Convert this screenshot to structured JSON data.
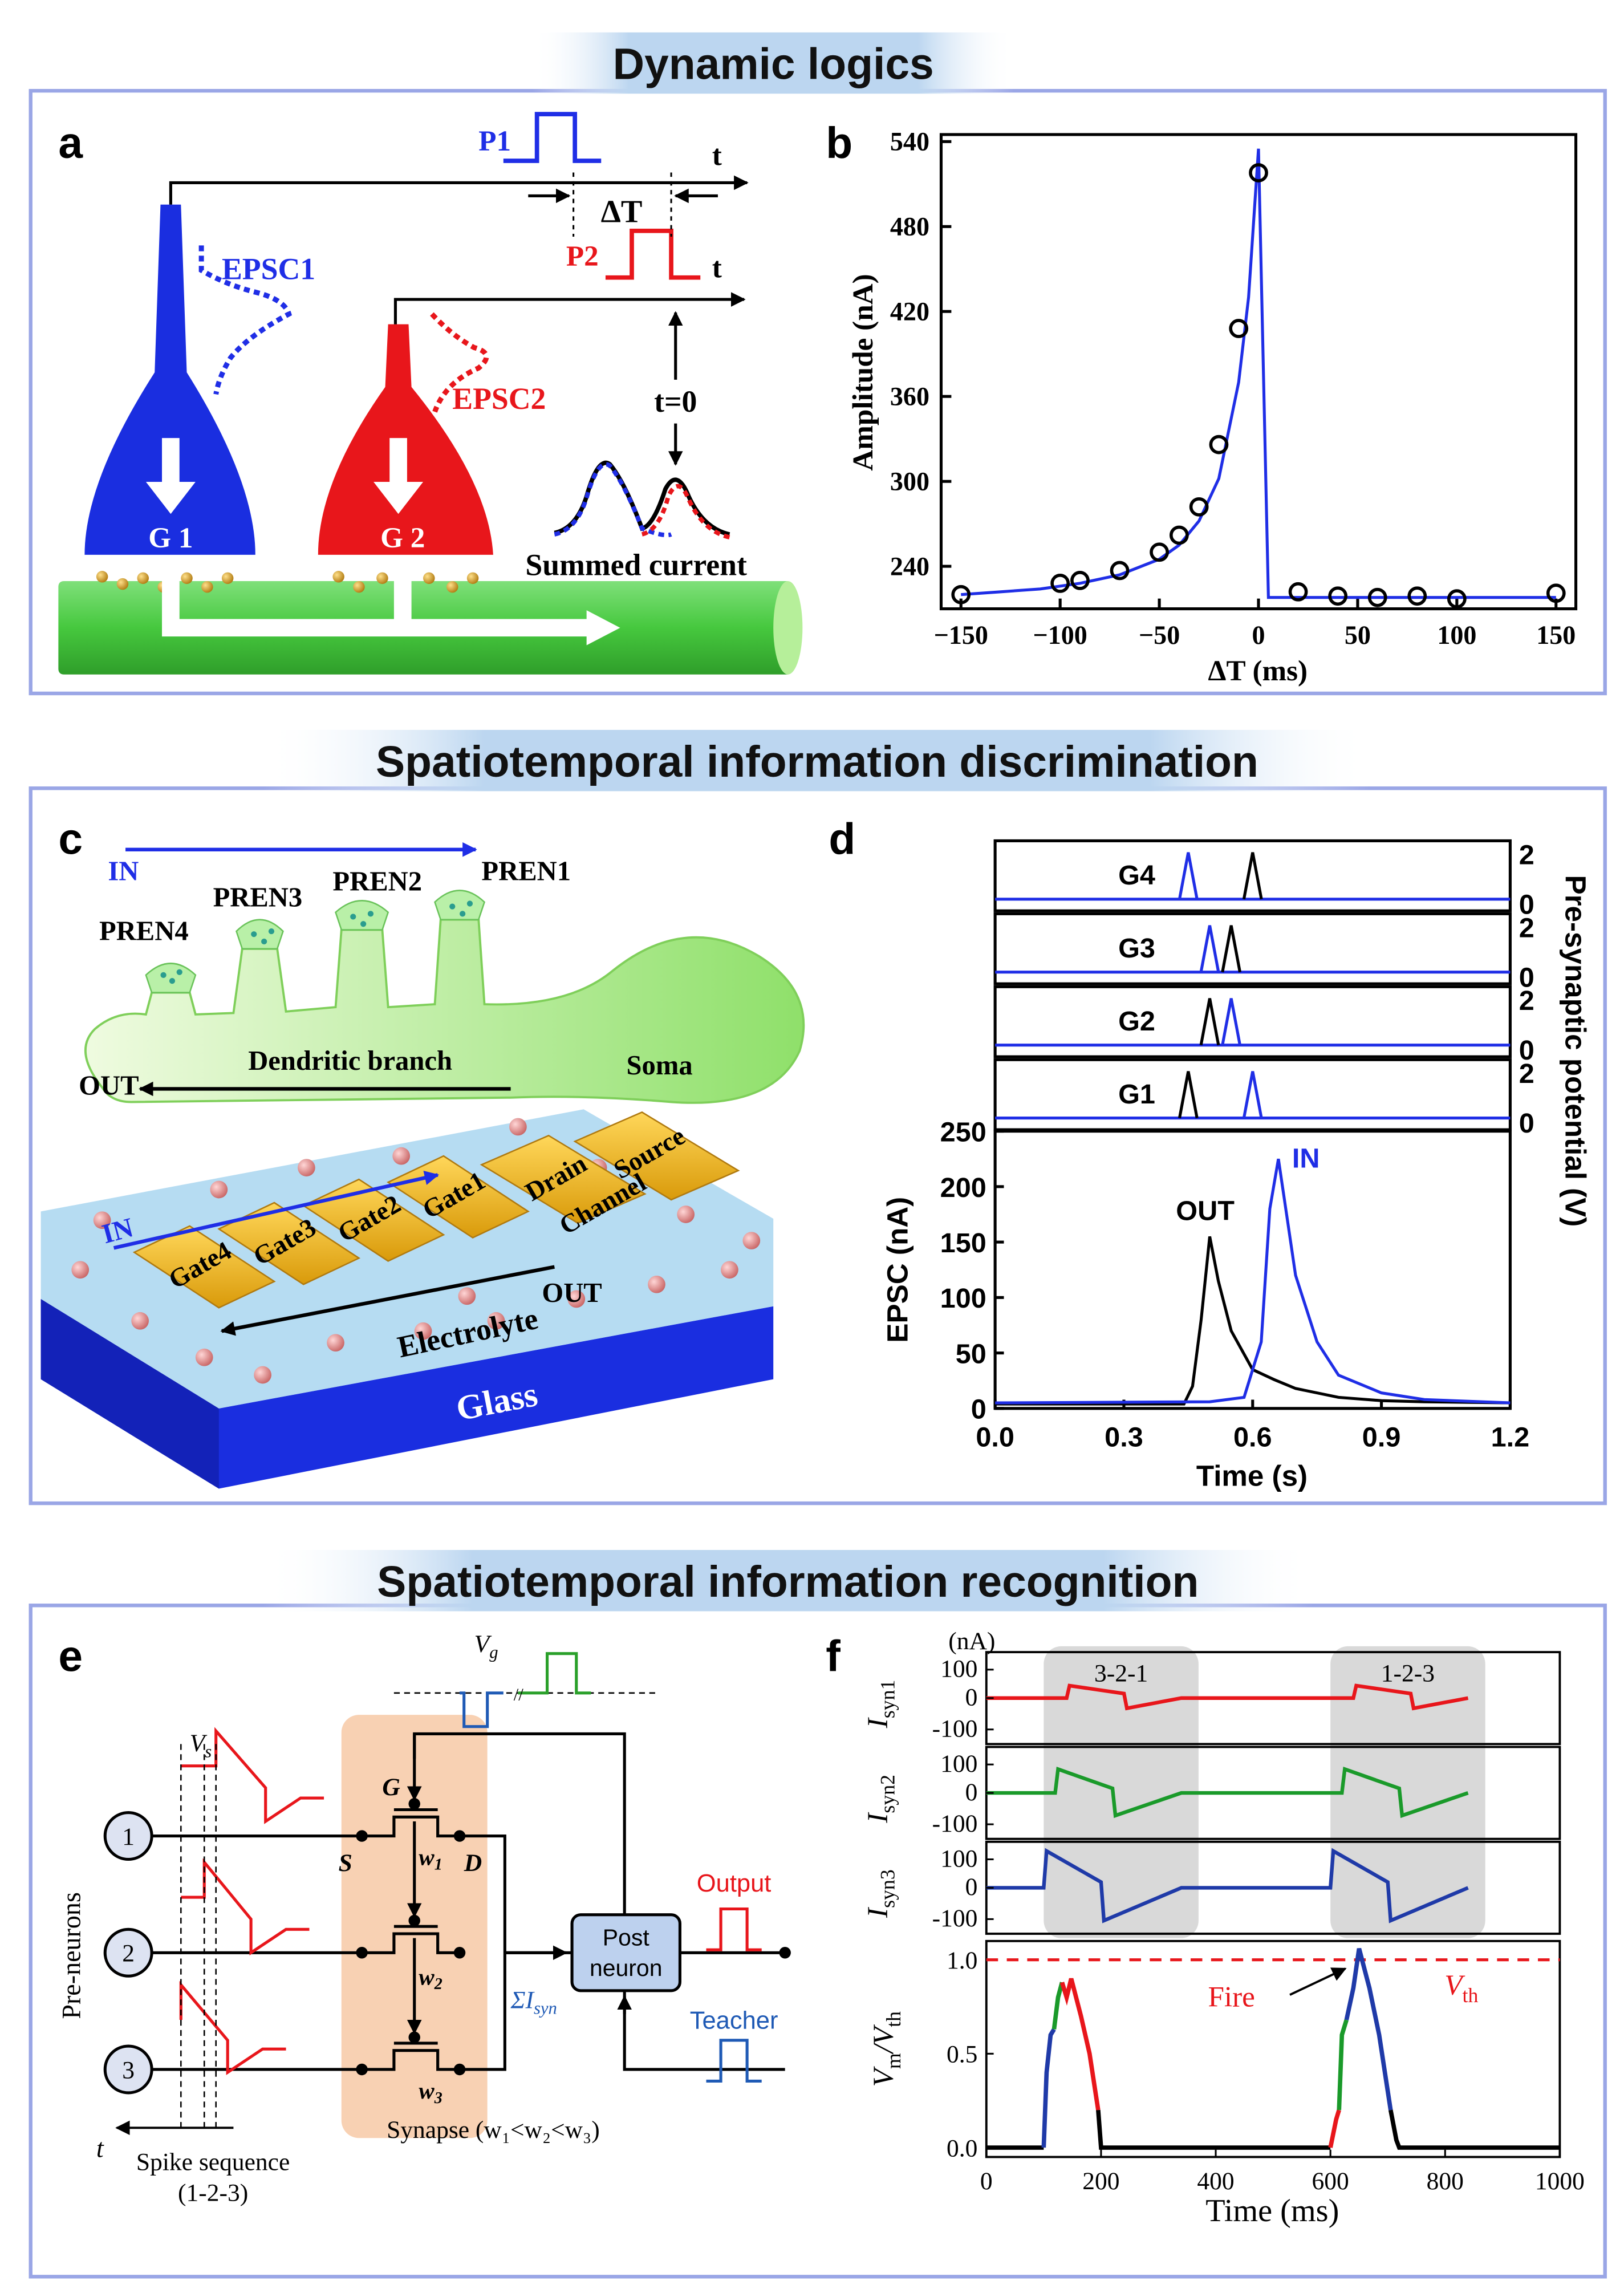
{
  "sections": {
    "dynamic": "Dynamic logics",
    "discrimination": "Spatiotemporal information discrimination",
    "recognition": "Spatiotemporal information recognition"
  },
  "panel_labels": {
    "a": "a",
    "b": "b",
    "c": "c",
    "d": "d",
    "e": "e",
    "f": "f"
  },
  "colors": {
    "blue": "#1f2ee6",
    "red": "#e8161b",
    "green": "#34c02e",
    "frame": "#9aa6e6",
    "banner": "#bcd6f0"
  },
  "panel_a": {
    "p1": "P1",
    "p2": "P2",
    "t1": "t",
    "t2": "t",
    "delta_t": "ΔT",
    "epsc1": "EPSC1",
    "epsc2": "EPSC2",
    "g1": "G 1",
    "g2": "G 2",
    "t_zero": "t=0",
    "summed": "Summed current"
  },
  "panel_c": {
    "in": "IN",
    "pren1": "PREN1",
    "pren2": "PREN2",
    "pren3": "PREN3",
    "pren4": "PREN4",
    "dendritic": "Dendritic branch",
    "soma": "Soma",
    "out": "OUT",
    "in2": "IN",
    "out2": "OUT",
    "gate1": "Gate1",
    "gate2": "Gate2",
    "gate3": "Gate3",
    "gate4": "Gate4",
    "drain": "Drain",
    "source": "Source",
    "channel": "Channel",
    "electrolyte": "Electrolyte",
    "glass": "Glass"
  },
  "panel_e": {
    "vg": "V",
    "vg_sub": "g",
    "vs": "V",
    "vs_sub": "s",
    "n1": "1",
    "n2": "2",
    "n3": "3",
    "pre_neurons": "Pre-neurons",
    "g": "G",
    "s": "S",
    "d": "D",
    "w1": "w",
    "w1_sub": "1",
    "w2": "w",
    "w2_sub": "2",
    "w3": "w",
    "w3_sub": "3",
    "post1": "Post",
    "post2": "neuron",
    "sum_i": "ΣI",
    "sum_sub": "syn",
    "output": "Output",
    "teacher": "Teacher",
    "t": "t",
    "spike_seq": "Spike sequence",
    "spike_order": "(1-2-3)",
    "synapse": "Synapse (w₁<w₂<w₃)"
  },
  "chart_data": [
    {
      "id": "b",
      "type": "scatter",
      "xlabel": "ΔT (ms)",
      "ylabel": "Amplitude (nA)",
      "xlim": [
        -160,
        160
      ],
      "ylim": [
        210,
        545
      ],
      "xticks": [
        -150,
        -100,
        -50,
        0,
        50,
        100,
        150
      ],
      "yticks": [
        240,
        300,
        360,
        420,
        480,
        540
      ],
      "xtick_labels": [
        "−150",
        "−100",
        "−50",
        "0",
        "50",
        "100",
        "150"
      ],
      "points": [
        [
          -150,
          220
        ],
        [
          -100,
          228
        ],
        [
          -90,
          230
        ],
        [
          -70,
          237
        ],
        [
          -50,
          250
        ],
        [
          -40,
          262
        ],
        [
          -30,
          282
        ],
        [
          -20,
          326
        ],
        [
          -10,
          408
        ],
        [
          0,
          518
        ],
        [
          20,
          222
        ],
        [
          40,
          219
        ],
        [
          60,
          218
        ],
        [
          80,
          219
        ],
        [
          100,
          217
        ],
        [
          150,
          221
        ]
      ],
      "fit": [
        [
          -150,
          220
        ],
        [
          -130,
          222
        ],
        [
          -110,
          224
        ],
        [
          -90,
          228
        ],
        [
          -70,
          234
        ],
        [
          -50,
          245
        ],
        [
          -40,
          255
        ],
        [
          -30,
          272
        ],
        [
          -20,
          302
        ],
        [
          -10,
          370
        ],
        [
          -5,
          430
        ],
        [
          0,
          535
        ],
        [
          5,
          218
        ],
        [
          150,
          218
        ]
      ]
    },
    {
      "id": "d",
      "type": "line",
      "xlabel": "Time (s)",
      "ylabel": "EPSC (nA)",
      "ylabel_right": "Pre-synaptic potential (V)",
      "xlim": [
        0.0,
        1.2
      ],
      "ylim": [
        0,
        250
      ],
      "xticks": [
        0.0,
        0.3,
        0.6,
        0.9,
        1.2
      ],
      "xtick_labels": [
        "0.0",
        "0.3",
        "0.6",
        "0.9",
        "1.2"
      ],
      "yticks": [
        0,
        50,
        100,
        150,
        200,
        250
      ],
      "ytick_labels": [
        "0",
        "50",
        "100",
        "150",
        "200",
        "250"
      ],
      "top_panels": [
        {
          "name": "G4",
          "blue_pulse": 0.45,
          "black_pulse": 0.6
        },
        {
          "name": "G3",
          "blue_pulse": 0.5,
          "black_pulse": 0.55
        },
        {
          "name": "G2",
          "blue_pulse": 0.55,
          "black_pulse": 0.5
        },
        {
          "name": "G1",
          "blue_pulse": 0.6,
          "black_pulse": 0.45
        }
      ],
      "top_ticks": [
        "2",
        "0"
      ],
      "series": [
        {
          "name": "OUT",
          "color": "black",
          "x": [
            0,
            0.44,
            0.46,
            0.48,
            0.5,
            0.52,
            0.55,
            0.6,
            0.65,
            0.7,
            0.8,
            0.9,
            1.0,
            1.2
          ],
          "y": [
            4,
            4,
            20,
            80,
            155,
            115,
            70,
            35,
            26,
            18,
            10,
            7,
            6,
            5
          ]
        },
        {
          "name": "IN",
          "color": "blue",
          "x": [
            0,
            0.5,
            0.58,
            0.62,
            0.64,
            0.66,
            0.7,
            0.75,
            0.8,
            0.9,
            1.0,
            1.2
          ],
          "y": [
            5,
            6,
            10,
            60,
            180,
            225,
            120,
            60,
            30,
            14,
            8,
            5
          ]
        }
      ],
      "labels": {
        "out": "OUT",
        "in": "IN"
      }
    },
    {
      "id": "f",
      "type": "line",
      "xlabel": "Time (ms)",
      "xlim": [
        0,
        1000
      ],
      "xticks": [
        0,
        200,
        400,
        600,
        800,
        1000
      ],
      "xtick_labels": [
        "0",
        "200",
        "400",
        "600",
        "800",
        "1000"
      ],
      "unit": "(nA)",
      "syn_panels": [
        {
          "label": "I",
          "sub": "syn1",
          "color": "red",
          "ticks": [
            "100",
            "0",
            "-100"
          ]
        },
        {
          "label": "I",
          "sub": "syn2",
          "color": "green",
          "ticks": [
            "100",
            "0",
            "-100"
          ]
        },
        {
          "label": "I",
          "sub": "syn3",
          "color": "blue",
          "ticks": [
            "100",
            "0",
            "-100"
          ]
        }
      ],
      "shaded": [
        {
          "label": "3-2-1",
          "from": 100,
          "to": 370
        },
        {
          "label": "1-2-3",
          "from": 600,
          "to": 870
        }
      ],
      "ylabel_main": "V",
      "ylabel_sub": "m",
      "ylabel_slash": "/V",
      "ylabel_sub2": "th",
      "yticks": [
        0.0,
        0.5,
        1.0
      ],
      "ytick_labels": [
        "0.0",
        "0.5",
        "1.0"
      ],
      "threshold": 1.0,
      "threshold_label": "V",
      "threshold_sub": "th",
      "fire_label": "Fire"
    }
  ]
}
